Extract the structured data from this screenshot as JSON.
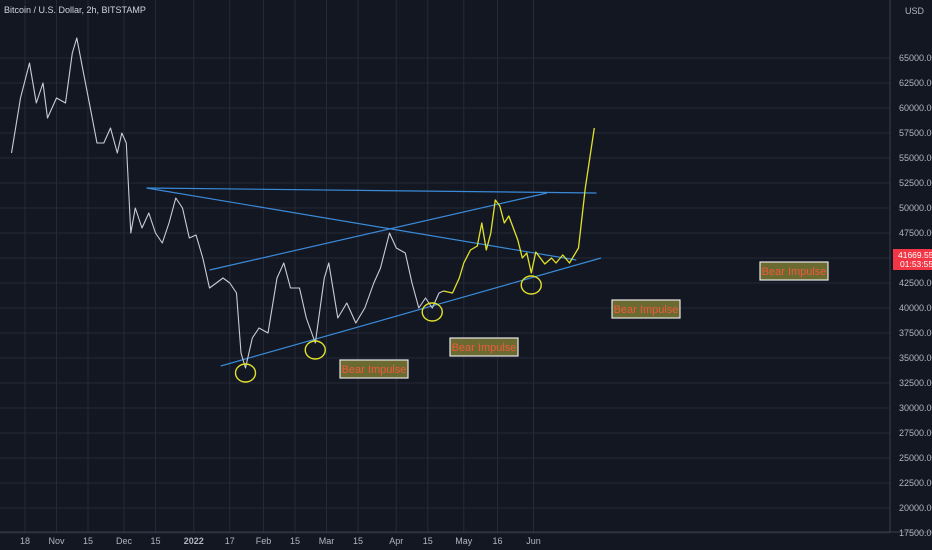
{
  "header": {
    "title": "Bitcoin / U.S. Dollar, 2h, BITSTAMP",
    "currency": "USD"
  },
  "price_tag": {
    "price": "41669.55",
    "countdown": "01:53:55",
    "color": "#f23645"
  },
  "annotations": [
    {
      "label": "Bear Impulse"
    },
    {
      "label": "Bear Impulse"
    },
    {
      "label": "Bear Impulse"
    },
    {
      "label": "Bear Impulse"
    }
  ],
  "colors": {
    "background": "#131722",
    "grid": "#262a38",
    "trendline": "#3a8ad8",
    "projection": "#e1e12a",
    "label_bg": "#6b6a30",
    "label_border": "#e8e8e8",
    "label_text": "#f05a3c",
    "axis_text": "#b2b5be"
  },
  "chart_data": {
    "type": "line",
    "title": "Bitcoin / U.S. Dollar, 2h, BITSTAMP",
    "xlabel": "",
    "ylabel": "USD",
    "ylim": [
      15500,
      65000
    ],
    "x_ticks": [
      "18",
      "Nov",
      "15",
      "Dec",
      "15",
      "2022",
      "17",
      "Feb",
      "15",
      "Mar",
      "15",
      "Apr",
      "15",
      "May",
      "16",
      "Jun"
    ],
    "y_ticks": [
      "65000.00",
      "62500.00",
      "60000.00",
      "57500.00",
      "55000.00",
      "52500.00",
      "50000.00",
      "47500.00",
      "45000.00",
      "42500.00",
      "40000.00",
      "37500.00",
      "35000.00",
      "32500.00",
      "30000.00",
      "27500.00",
      "25000.00",
      "22500.00",
      "20000.00",
      "17500.00"
    ],
    "series": [
      {
        "values": [
          [
            "2021-10-12",
            55500
          ],
          [
            "2021-10-16",
            61000
          ],
          [
            "2021-10-20",
            64500
          ],
          [
            "2021-10-23",
            60500
          ],
          [
            "2021-10-26",
            62500
          ],
          [
            "2021-10-28",
            59000
          ],
          [
            "2021-11-01",
            61000
          ],
          [
            "2021-11-05",
            60500
          ],
          [
            "2021-11-08",
            65500
          ],
          [
            "2021-11-10",
            67000
          ],
          [
            "2021-11-13",
            63500
          ],
          [
            "2021-11-16",
            60000
          ],
          [
            "2021-11-19",
            56500
          ],
          [
            "2021-11-22",
            56500
          ],
          [
            "2021-11-25",
            58000
          ],
          [
            "2021-11-28",
            55500
          ],
          [
            "2021-11-30",
            57500
          ],
          [
            "2021-12-02",
            56500
          ],
          [
            "2021-12-04",
            47500
          ],
          [
            "2021-12-06",
            50000
          ],
          [
            "2021-12-09",
            48000
          ],
          [
            "2021-12-12",
            49500
          ],
          [
            "2021-12-15",
            47500
          ],
          [
            "2021-12-18",
            46500
          ],
          [
            "2021-12-21",
            48500
          ],
          [
            "2021-12-24",
            51000
          ],
          [
            "2021-12-27",
            50000
          ],
          [
            "2021-12-30",
            47000
          ],
          [
            "2022-01-02",
            47300
          ],
          [
            "2022-01-05",
            45000
          ],
          [
            "2022-01-08",
            42000
          ],
          [
            "2022-01-11",
            42500
          ],
          [
            "2022-01-14",
            43000
          ],
          [
            "2022-01-17",
            42500
          ],
          [
            "2022-01-20",
            41500
          ],
          [
            "2022-01-22",
            35500
          ],
          [
            "2022-01-24",
            34000
          ],
          [
            "2022-01-27",
            37000
          ],
          [
            "2022-01-30",
            38000
          ],
          [
            "2022-02-03",
            37500
          ],
          [
            "2022-02-07",
            43000
          ],
          [
            "2022-02-10",
            44500
          ],
          [
            "2022-02-13",
            42000
          ],
          [
            "2022-02-17",
            42000
          ],
          [
            "2022-02-20",
            39000
          ],
          [
            "2022-02-24",
            36500
          ],
          [
            "2022-02-28",
            43000
          ],
          [
            "2022-03-02",
            44500
          ],
          [
            "2022-03-06",
            39000
          ],
          [
            "2022-03-10",
            40500
          ],
          [
            "2022-03-14",
            38500
          ],
          [
            "2022-03-18",
            40000
          ],
          [
            "2022-03-22",
            42500
          ],
          [
            "2022-03-25",
            44000
          ],
          [
            "2022-03-29",
            47500
          ],
          [
            "2022-04-01",
            46000
          ],
          [
            "2022-04-05",
            45500
          ],
          [
            "2022-04-08",
            42500
          ],
          [
            "2022-04-11",
            40000
          ],
          [
            "2022-04-14",
            41000
          ],
          [
            "2022-04-17",
            40000
          ],
          [
            "2022-04-20",
            41500
          ],
          [
            "2022-04-22",
            41700
          ]
        ]
      },
      {
        "values": [
          [
            "2022-04-22",
            41700
          ],
          [
            "2022-04-26",
            41500
          ],
          [
            "2022-04-29",
            43000
          ],
          [
            "2022-05-01",
            44500
          ],
          [
            "2022-05-04",
            45800
          ],
          [
            "2022-05-07",
            46200
          ],
          [
            "2022-05-09",
            48500
          ],
          [
            "2022-05-11",
            45800
          ],
          [
            "2022-05-13",
            47500
          ],
          [
            "2022-05-15",
            50800
          ],
          [
            "2022-05-17",
            50200
          ],
          [
            "2022-05-19",
            48500
          ],
          [
            "2022-05-21",
            49200
          ],
          [
            "2022-05-23",
            48000
          ],
          [
            "2022-05-25",
            46800
          ],
          [
            "2022-05-27",
            45000
          ],
          [
            "2022-05-29",
            45500
          ],
          [
            "2022-05-31",
            43500
          ],
          [
            "2022-06-02",
            45600
          ],
          [
            "2022-06-04",
            45000
          ],
          [
            "2022-06-06",
            44400
          ],
          [
            "2022-06-09",
            45000
          ],
          [
            "2022-06-11",
            44500
          ],
          [
            "2022-06-14",
            45300
          ],
          [
            "2022-06-17",
            44500
          ],
          [
            "2022-06-21",
            46000
          ],
          [
            "2022-06-24",
            52000
          ],
          [
            "2022-06-28",
            58000
          ]
        ]
      }
    ]
  }
}
